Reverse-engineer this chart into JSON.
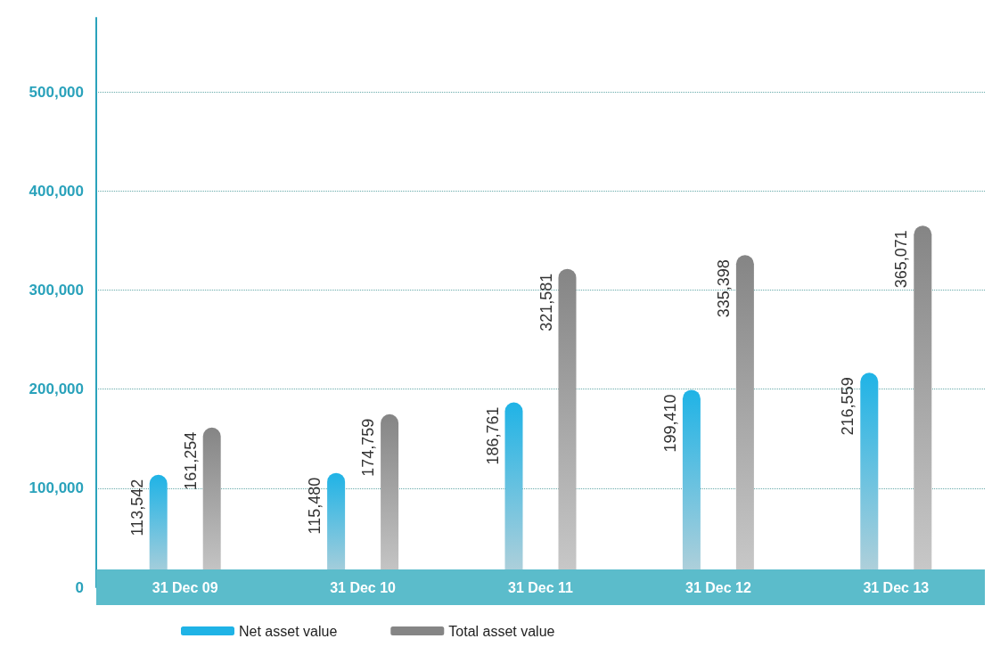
{
  "chart_data": {
    "type": "bar",
    "categories": [
      "31 Dec 09",
      "31 Dec 10",
      "31 Dec 11",
      "31 Dec 12",
      "31 Dec 13"
    ],
    "series": [
      {
        "name": "Net asset value",
        "color": "#1fb3e6",
        "values": [
          113542,
          115480,
          186761,
          199410,
          216559
        ],
        "value_labels": [
          "113,542",
          "115,480",
          "186,761",
          "199,410",
          "216,559"
        ]
      },
      {
        "name": "Total asset value",
        "color": "#858585",
        "values": [
          161254,
          174759,
          321581,
          335398,
          365071
        ],
        "value_labels": [
          "161,254",
          "174,759",
          "321,581",
          "335,398",
          "365,071"
        ]
      }
    ],
    "ylim": [
      0,
      575000
    ],
    "yticks": [
      {
        "value": 0,
        "label": "0"
      },
      {
        "value": 100000,
        "label": "100,000"
      },
      {
        "value": 200000,
        "label": "200,000"
      },
      {
        "value": 300000,
        "label": "300,000"
      },
      {
        "value": 400000,
        "label": "400,000"
      },
      {
        "value": 500000,
        "label": "500,000"
      }
    ],
    "grid": "y",
    "legend": "bottom left"
  }
}
